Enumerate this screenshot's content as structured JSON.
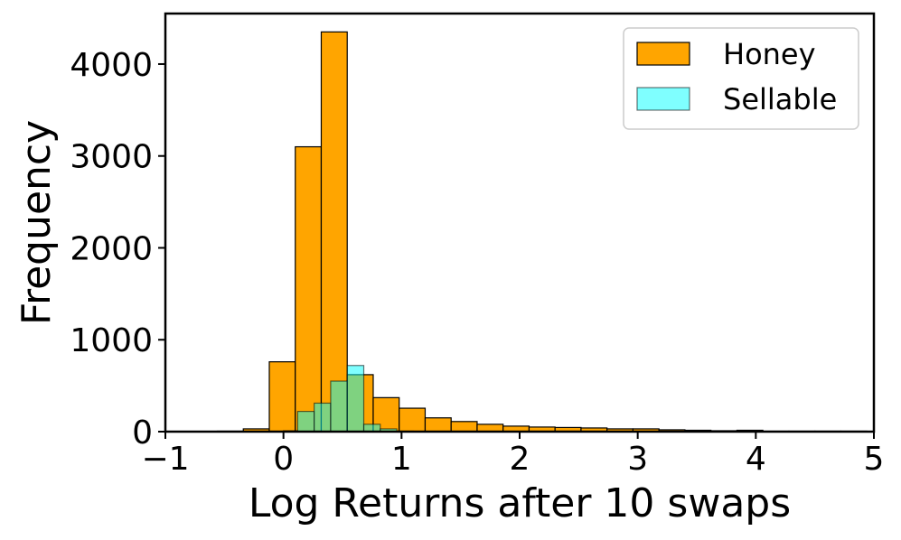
{
  "chart_data": {
    "type": "bar",
    "subtype": "histogram",
    "title": "",
    "xlabel": "Log Returns after 10 swaps",
    "ylabel": "Frequency",
    "xlim": [
      -1,
      5
    ],
    "ylim": [
      0,
      4550
    ],
    "x_ticks": [
      {
        "value": -1,
        "label": "−1"
      },
      {
        "value": 0,
        "label": "0"
      },
      {
        "value": 1,
        "label": "1"
      },
      {
        "value": 2,
        "label": "2"
      },
      {
        "value": 3,
        "label": "3"
      },
      {
        "value": 4,
        "label": "4"
      },
      {
        "value": 5,
        "label": "5"
      }
    ],
    "y_ticks": [
      {
        "value": 0,
        "label": "0"
      },
      {
        "value": 1000,
        "label": "1000"
      },
      {
        "value": 2000,
        "label": "2000"
      },
      {
        "value": 3000,
        "label": "3000"
      },
      {
        "value": 4000,
        "label": "4000"
      }
    ],
    "grid": false,
    "legend_position": "top-right",
    "series": [
      {
        "name": "Honey",
        "color": "#FFA500",
        "edge_color": "#000000",
        "opacity": 1.0,
        "bins": [
          {
            "start": -1.0,
            "end": -0.78,
            "value": 0
          },
          {
            "start": -0.78,
            "end": -0.56,
            "value": 0
          },
          {
            "start": -0.56,
            "end": -0.34,
            "value": 5
          },
          {
            "start": -0.34,
            "end": -0.12,
            "value": 30
          },
          {
            "start": -0.12,
            "end": 0.1,
            "value": 760
          },
          {
            "start": 0.1,
            "end": 0.32,
            "value": 3100
          },
          {
            "start": 0.32,
            "end": 0.54,
            "value": 4350
          },
          {
            "start": 0.54,
            "end": 0.76,
            "value": 620
          },
          {
            "start": 0.76,
            "end": 0.98,
            "value": 370
          },
          {
            "start": 0.98,
            "end": 1.2,
            "value": 255
          },
          {
            "start": 1.2,
            "end": 1.42,
            "value": 150
          },
          {
            "start": 1.42,
            "end": 1.64,
            "value": 110
          },
          {
            "start": 1.64,
            "end": 1.86,
            "value": 80
          },
          {
            "start": 1.86,
            "end": 2.08,
            "value": 60
          },
          {
            "start": 2.08,
            "end": 2.3,
            "value": 50
          },
          {
            "start": 2.3,
            "end": 2.52,
            "value": 45
          },
          {
            "start": 2.52,
            "end": 2.74,
            "value": 40
          },
          {
            "start": 2.74,
            "end": 2.96,
            "value": 30
          },
          {
            "start": 2.96,
            "end": 3.18,
            "value": 30
          },
          {
            "start": 3.18,
            "end": 3.4,
            "value": 20
          },
          {
            "start": 3.4,
            "end": 3.62,
            "value": 15
          },
          {
            "start": 3.62,
            "end": 3.84,
            "value": 10
          },
          {
            "start": 3.84,
            "end": 4.06,
            "value": 15
          },
          {
            "start": 4.06,
            "end": 4.28,
            "value": 5
          },
          {
            "start": 4.28,
            "end": 4.5,
            "value": 5
          },
          {
            "start": 4.5,
            "end": 4.72,
            "value": 5
          },
          {
            "start": 4.72,
            "end": 4.94,
            "value": 5
          }
        ]
      },
      {
        "name": "Sellable",
        "color": "#00FFFF",
        "edge_color": "#000000",
        "opacity": 0.5,
        "bins": [
          {
            "start": 0.0,
            "end": 0.12,
            "value": 10
          },
          {
            "start": 0.12,
            "end": 0.26,
            "value": 220
          },
          {
            "start": 0.26,
            "end": 0.4,
            "value": 310
          },
          {
            "start": 0.4,
            "end": 0.54,
            "value": 550
          },
          {
            "start": 0.54,
            "end": 0.68,
            "value": 720
          },
          {
            "start": 0.68,
            "end": 0.82,
            "value": 80
          },
          {
            "start": 0.82,
            "end": 0.96,
            "value": 30
          },
          {
            "start": 0.96,
            "end": 1.1,
            "value": 5
          }
        ]
      }
    ]
  }
}
